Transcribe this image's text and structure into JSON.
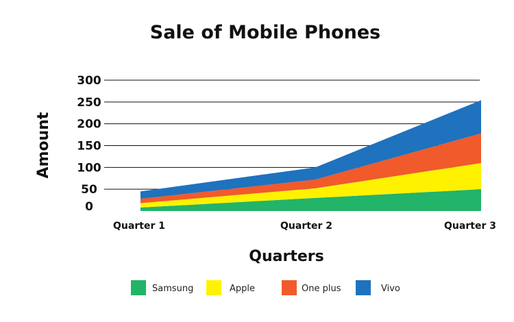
{
  "chart_data": {
    "type": "area",
    "stacked": true,
    "title": "Sale of Mobile Phones",
    "xlabel": "Quarters",
    "ylabel": "Amount",
    "categories": [
      "Quarter 1",
      "Quarter 2",
      "Quarter 3"
    ],
    "ylim": [
      0,
      300
    ],
    "yticks": [
      0,
      50,
      100,
      150,
      200,
      250,
      300
    ],
    "grid": true,
    "legend_position": "bottom",
    "series": [
      {
        "name": "Samsung",
        "color": "#22b469",
        "values": [
          8,
          30,
          50
        ]
      },
      {
        "name": "Apple",
        "color": "#fff200",
        "values": [
          10,
          22,
          60
        ]
      },
      {
        "name": "One plus",
        "color": "#f15a2b",
        "values": [
          10,
          20,
          68
        ]
      },
      {
        "name": "Vivo",
        "color": "#1f72bd",
        "values": [
          17,
          28,
          76
        ]
      }
    ]
  }
}
